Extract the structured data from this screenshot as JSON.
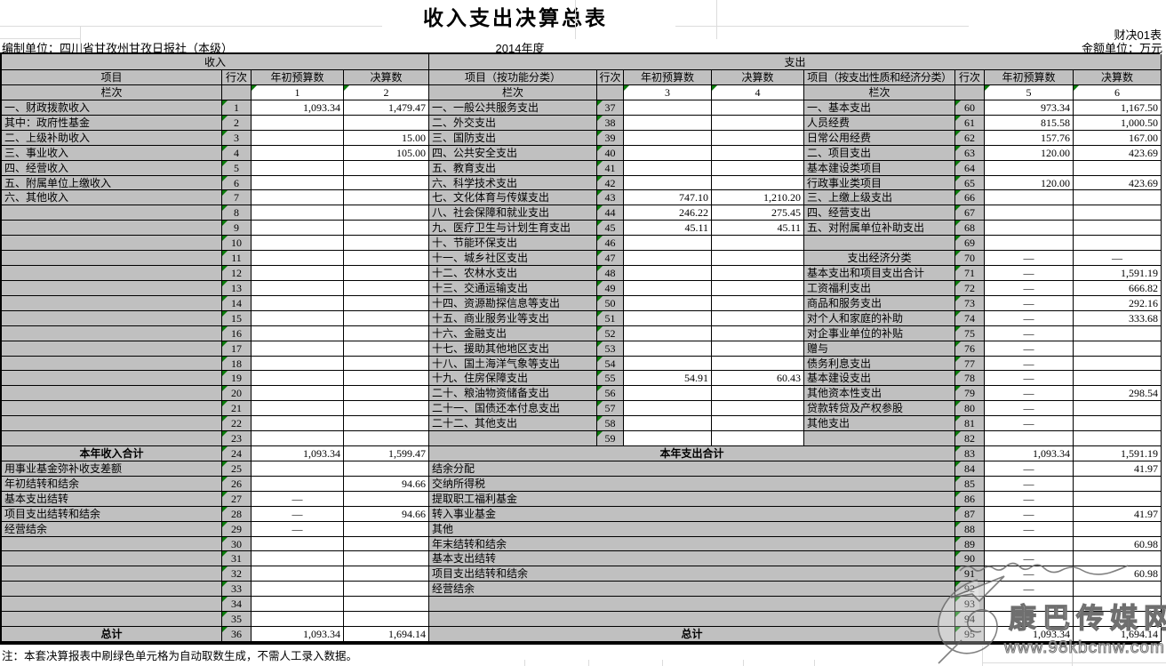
{
  "title": "收入支出决算总表",
  "form_code": "财决01表",
  "unit_label": "金额单位：万元",
  "prepared_by": "编制单位：四川省甘孜州甘孜日报社（本级）",
  "fiscal_year": "2014年度",
  "footnote": "注：本套决算报表中刷绿色单元格为自动取数生成，不需人工录入数据。",
  "watermark": {
    "site_name": "康巴传媒网",
    "site_url": "www.98kbcmw.com"
  },
  "colors": {
    "header_bg": "#c0c0c0",
    "cell_bg": "#ffffff",
    "table_border": "#000000",
    "marker_green": "#0a7a0a",
    "faint_grid": "#dcdcdc"
  },
  "headers": {
    "income": "收入",
    "expense": "支出",
    "item": "项目",
    "item_by_function": "项目（按功能分类）",
    "item_by_nature": "项目（按支出性质和经济分类）",
    "row_no": "行次",
    "initial_budget": "年初预算数",
    "final_accounts": "决算数",
    "column_label": "栏次",
    "column_numbers": [
      "1",
      "2",
      "3",
      "4",
      "5",
      "6"
    ]
  },
  "income_rows": [
    {
      "label": "一、财政拨款收入",
      "no": "1",
      "v1": "1,093.34",
      "v2": "1,479.47"
    },
    {
      "label": "其中：政府性基金",
      "no": "2",
      "ind": 1
    },
    {
      "label": "二、上级补助收入",
      "no": "3",
      "v2": "15.00"
    },
    {
      "label": "三、事业收入",
      "no": "4",
      "v2": "105.00"
    },
    {
      "label": "四、经营收入",
      "no": "5"
    },
    {
      "label": "五、附属单位上缴收入",
      "no": "6"
    },
    {
      "label": "六、其他收入",
      "no": "7"
    },
    {
      "label": "",
      "no": "8"
    },
    {
      "label": "",
      "no": "9"
    },
    {
      "label": "",
      "no": "10"
    },
    {
      "label": "",
      "no": "11"
    },
    {
      "label": "",
      "no": "12"
    },
    {
      "label": "",
      "no": "13"
    },
    {
      "label": "",
      "no": "14"
    },
    {
      "label": "",
      "no": "15"
    },
    {
      "label": "",
      "no": "16"
    },
    {
      "label": "",
      "no": "17"
    },
    {
      "label": "",
      "no": "18"
    },
    {
      "label": "",
      "no": "19"
    },
    {
      "label": "",
      "no": "20"
    },
    {
      "label": "",
      "no": "21"
    },
    {
      "label": "",
      "no": "22"
    },
    {
      "label": "",
      "no": "23"
    },
    {
      "label": "本年收入合计",
      "no": "24",
      "v1": "1,093.34",
      "v2": "1,599.47",
      "bold": true
    },
    {
      "label": "用事业基金弥补收支差额",
      "no": "25",
      "ind": 1
    },
    {
      "label": "年初结转和结余",
      "no": "26",
      "v2": "94.66",
      "ind": 1
    },
    {
      "label": "基本支出结转",
      "no": "27",
      "v1": "—",
      "ind": 2
    },
    {
      "label": "项目支出结转和结余",
      "no": "28",
      "v1": "—",
      "v2": "94.66",
      "ind": 2
    },
    {
      "label": "经营结余",
      "no": "29",
      "v1": "—",
      "ind": 2
    },
    {
      "label": "",
      "no": "30"
    },
    {
      "label": "",
      "no": "31"
    },
    {
      "label": "",
      "no": "32"
    },
    {
      "label": "",
      "no": "33"
    },
    {
      "label": "",
      "no": "34"
    },
    {
      "label": "",
      "no": "35"
    },
    {
      "label": "总计",
      "no": "36",
      "v1": "1,093.34",
      "v2": "1,694.14",
      "bold": true
    }
  ],
  "function_rows": [
    {
      "label": "一、一般公共服务支出",
      "no": "37"
    },
    {
      "label": "二、外交支出",
      "no": "38"
    },
    {
      "label": "三、国防支出",
      "no": "39"
    },
    {
      "label": "四、公共安全支出",
      "no": "40"
    },
    {
      "label": "五、教育支出",
      "no": "41"
    },
    {
      "label": "六、科学技术支出",
      "no": "42"
    },
    {
      "label": "七、文化体育与传媒支出",
      "no": "43",
      "v1": "747.10",
      "v2": "1,210.20"
    },
    {
      "label": "八、社会保障和就业支出",
      "no": "44",
      "v1": "246.22",
      "v2": "275.45"
    },
    {
      "label": "九、医疗卫生与计划生育支出",
      "no": "45",
      "v1": "45.11",
      "v2": "45.11"
    },
    {
      "label": "十、节能环保支出",
      "no": "46"
    },
    {
      "label": "十一、城乡社区支出",
      "no": "47"
    },
    {
      "label": "十二、农林水支出",
      "no": "48"
    },
    {
      "label": "十三、交通运输支出",
      "no": "49"
    },
    {
      "label": "十四、资源勘探信息等支出",
      "no": "50"
    },
    {
      "label": "十五、商业服务业等支出",
      "no": "51"
    },
    {
      "label": "十六、金融支出",
      "no": "52"
    },
    {
      "label": "十七、援助其他地区支出",
      "no": "53"
    },
    {
      "label": "十八、国土海洋气象等支出",
      "no": "54"
    },
    {
      "label": "十九、住房保障支出",
      "no": "55",
      "v1": "54.91",
      "v2": "60.43"
    },
    {
      "label": "二十、粮油物资储备支出",
      "no": "56"
    },
    {
      "label": "二十一、国债还本付息支出",
      "no": "57"
    },
    {
      "label": "二十二、其他支出",
      "no": "58"
    },
    {
      "label": "",
      "no": "59"
    }
  ],
  "economic_rows": [
    {
      "label": "一、基本支出",
      "no": "60",
      "v1": "973.34",
      "v2": "1,167.50"
    },
    {
      "label": "人员经费",
      "no": "61",
      "v1": "815.58",
      "v2": "1,000.50",
      "ind": 1
    },
    {
      "label": "日常公用经费",
      "no": "62",
      "v1": "157.76",
      "v2": "167.00",
      "ind": 1
    },
    {
      "label": "二、项目支出",
      "no": "63",
      "v1": "120.00",
      "v2": "423.69"
    },
    {
      "label": "基本建设类项目",
      "no": "64",
      "ind": 1
    },
    {
      "label": "行政事业类项目",
      "no": "65",
      "v1": "120.00",
      "v2": "423.69",
      "ind": 1
    },
    {
      "label": "三、上缴上级支出",
      "no": "66"
    },
    {
      "label": "四、经营支出",
      "no": "67"
    },
    {
      "label": "五、对附属单位补助支出",
      "no": "68"
    },
    {
      "label": "",
      "no": "69"
    },
    {
      "label": "支出经济分类",
      "no": "70",
      "v1": "—",
      "v2": "—",
      "ctr": true
    },
    {
      "label": "基本支出和项目支出合计",
      "no": "71",
      "v1": "—",
      "v2": "1,591.19"
    },
    {
      "label": "工资福利支出",
      "no": "72",
      "v1": "—",
      "v2": "666.82",
      "ind": 1
    },
    {
      "label": "商品和服务支出",
      "no": "73",
      "v1": "—",
      "v2": "292.16",
      "ind": 1
    },
    {
      "label": "对个人和家庭的补助",
      "no": "74",
      "v1": "—",
      "v2": "333.68",
      "ind": 1
    },
    {
      "label": "对企事业单位的补贴",
      "no": "75",
      "v1": "—",
      "ind": 1
    },
    {
      "label": "赠与",
      "no": "76",
      "v1": "—",
      "ind": 1
    },
    {
      "label": "债务利息支出",
      "no": "77",
      "v1": "—",
      "ind": 1
    },
    {
      "label": "基本建设支出",
      "no": "78",
      "v1": "—",
      "ind": 1
    },
    {
      "label": "其他资本性支出",
      "no": "79",
      "v1": "—",
      "v2": "298.54",
      "ind": 1
    },
    {
      "label": "贷款转贷及产权参股",
      "no": "80",
      "v1": "—",
      "ind": 1
    },
    {
      "label": "其他支出",
      "no": "81",
      "v1": "—",
      "ind": 1
    },
    {
      "label": "",
      "no": "82"
    }
  ],
  "bottom_rows": [
    {
      "label": "本年支出合计",
      "no": "83",
      "v1": "1,093.34",
      "v2": "1,591.19",
      "bold": true
    },
    {
      "label": "结余分配",
      "no": "84",
      "v1": "—",
      "v2": "41.97",
      "ind": 1
    },
    {
      "label": "交纳所得税",
      "no": "85",
      "v1": "—",
      "ind": 2
    },
    {
      "label": "提取职工福利基金",
      "no": "86",
      "v1": "—",
      "ind": 2
    },
    {
      "label": "转入事业基金",
      "no": "87",
      "v1": "—",
      "v2": "41.97",
      "ind": 2
    },
    {
      "label": "其他",
      "no": "88",
      "v1": "—",
      "ind": 2
    },
    {
      "label": "年末结转和结余",
      "no": "89",
      "v2": "60.98",
      "ind": 1
    },
    {
      "label": "基本支出结转",
      "no": "90",
      "v1": "—",
      "ind": 2
    },
    {
      "label": "项目支出结转和结余",
      "no": "91",
      "v1": "—",
      "v2": "60.98",
      "ind": 2
    },
    {
      "label": "经营结余",
      "no": "92",
      "v1": "—",
      "ind": 2
    },
    {
      "label": "",
      "no": "93"
    },
    {
      "label": "",
      "no": "94"
    },
    {
      "label": "总计",
      "no": "95",
      "v1": "1,093.34",
      "v2": "1,694.14",
      "bold": true
    }
  ]
}
